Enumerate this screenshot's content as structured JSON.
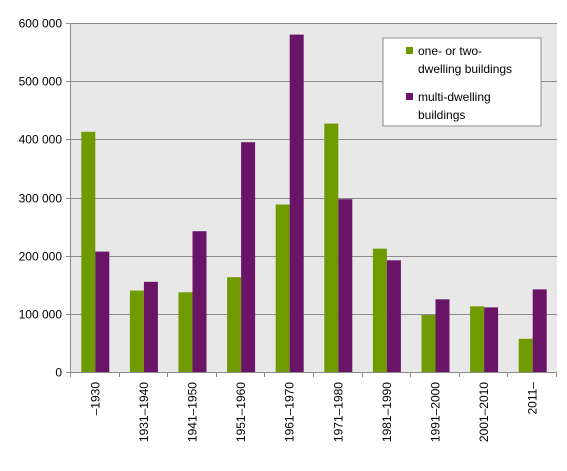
{
  "chart_data": {
    "type": "bar",
    "categories": [
      "–1930",
      "1931–1940",
      "1941–1950",
      "1951–1960",
      "1961–1970",
      "1971–1980",
      "1981–1990",
      "1991–2000",
      "2001–2010",
      "2011–"
    ],
    "series": [
      {
        "name": "one- or two-dwelling buildings",
        "color": "#6f9a00",
        "values": [
          413000,
          140000,
          137000,
          163000,
          288000,
          427000,
          212000,
          98000,
          113000,
          57000
        ]
      },
      {
        "name": "multi-dwelling buildings",
        "color": "#6a1468",
        "values": [
          207000,
          155000,
          242000,
          395000,
          580000,
          297000,
          192000,
          125000,
          111000,
          142000
        ]
      }
    ],
    "y_ticks": [
      0,
      100000,
      200000,
      300000,
      400000,
      500000,
      600000
    ],
    "y_tick_labels": [
      "0",
      "100 000",
      "200 000",
      "300 000",
      "400 000",
      "500 000",
      "600 000"
    ],
    "ylim": [
      0,
      600000
    ],
    "title": "",
    "xlabel": "",
    "ylabel": "",
    "grid": "horizontal",
    "legend_position": "top-right",
    "legend_lines": [
      [
        "one- or two-",
        "dwelling buildings"
      ],
      [
        "multi-dwelling",
        "buildings"
      ]
    ],
    "plot_background": "#e8e8e8",
    "gridline_color": "#8c8c8c"
  }
}
